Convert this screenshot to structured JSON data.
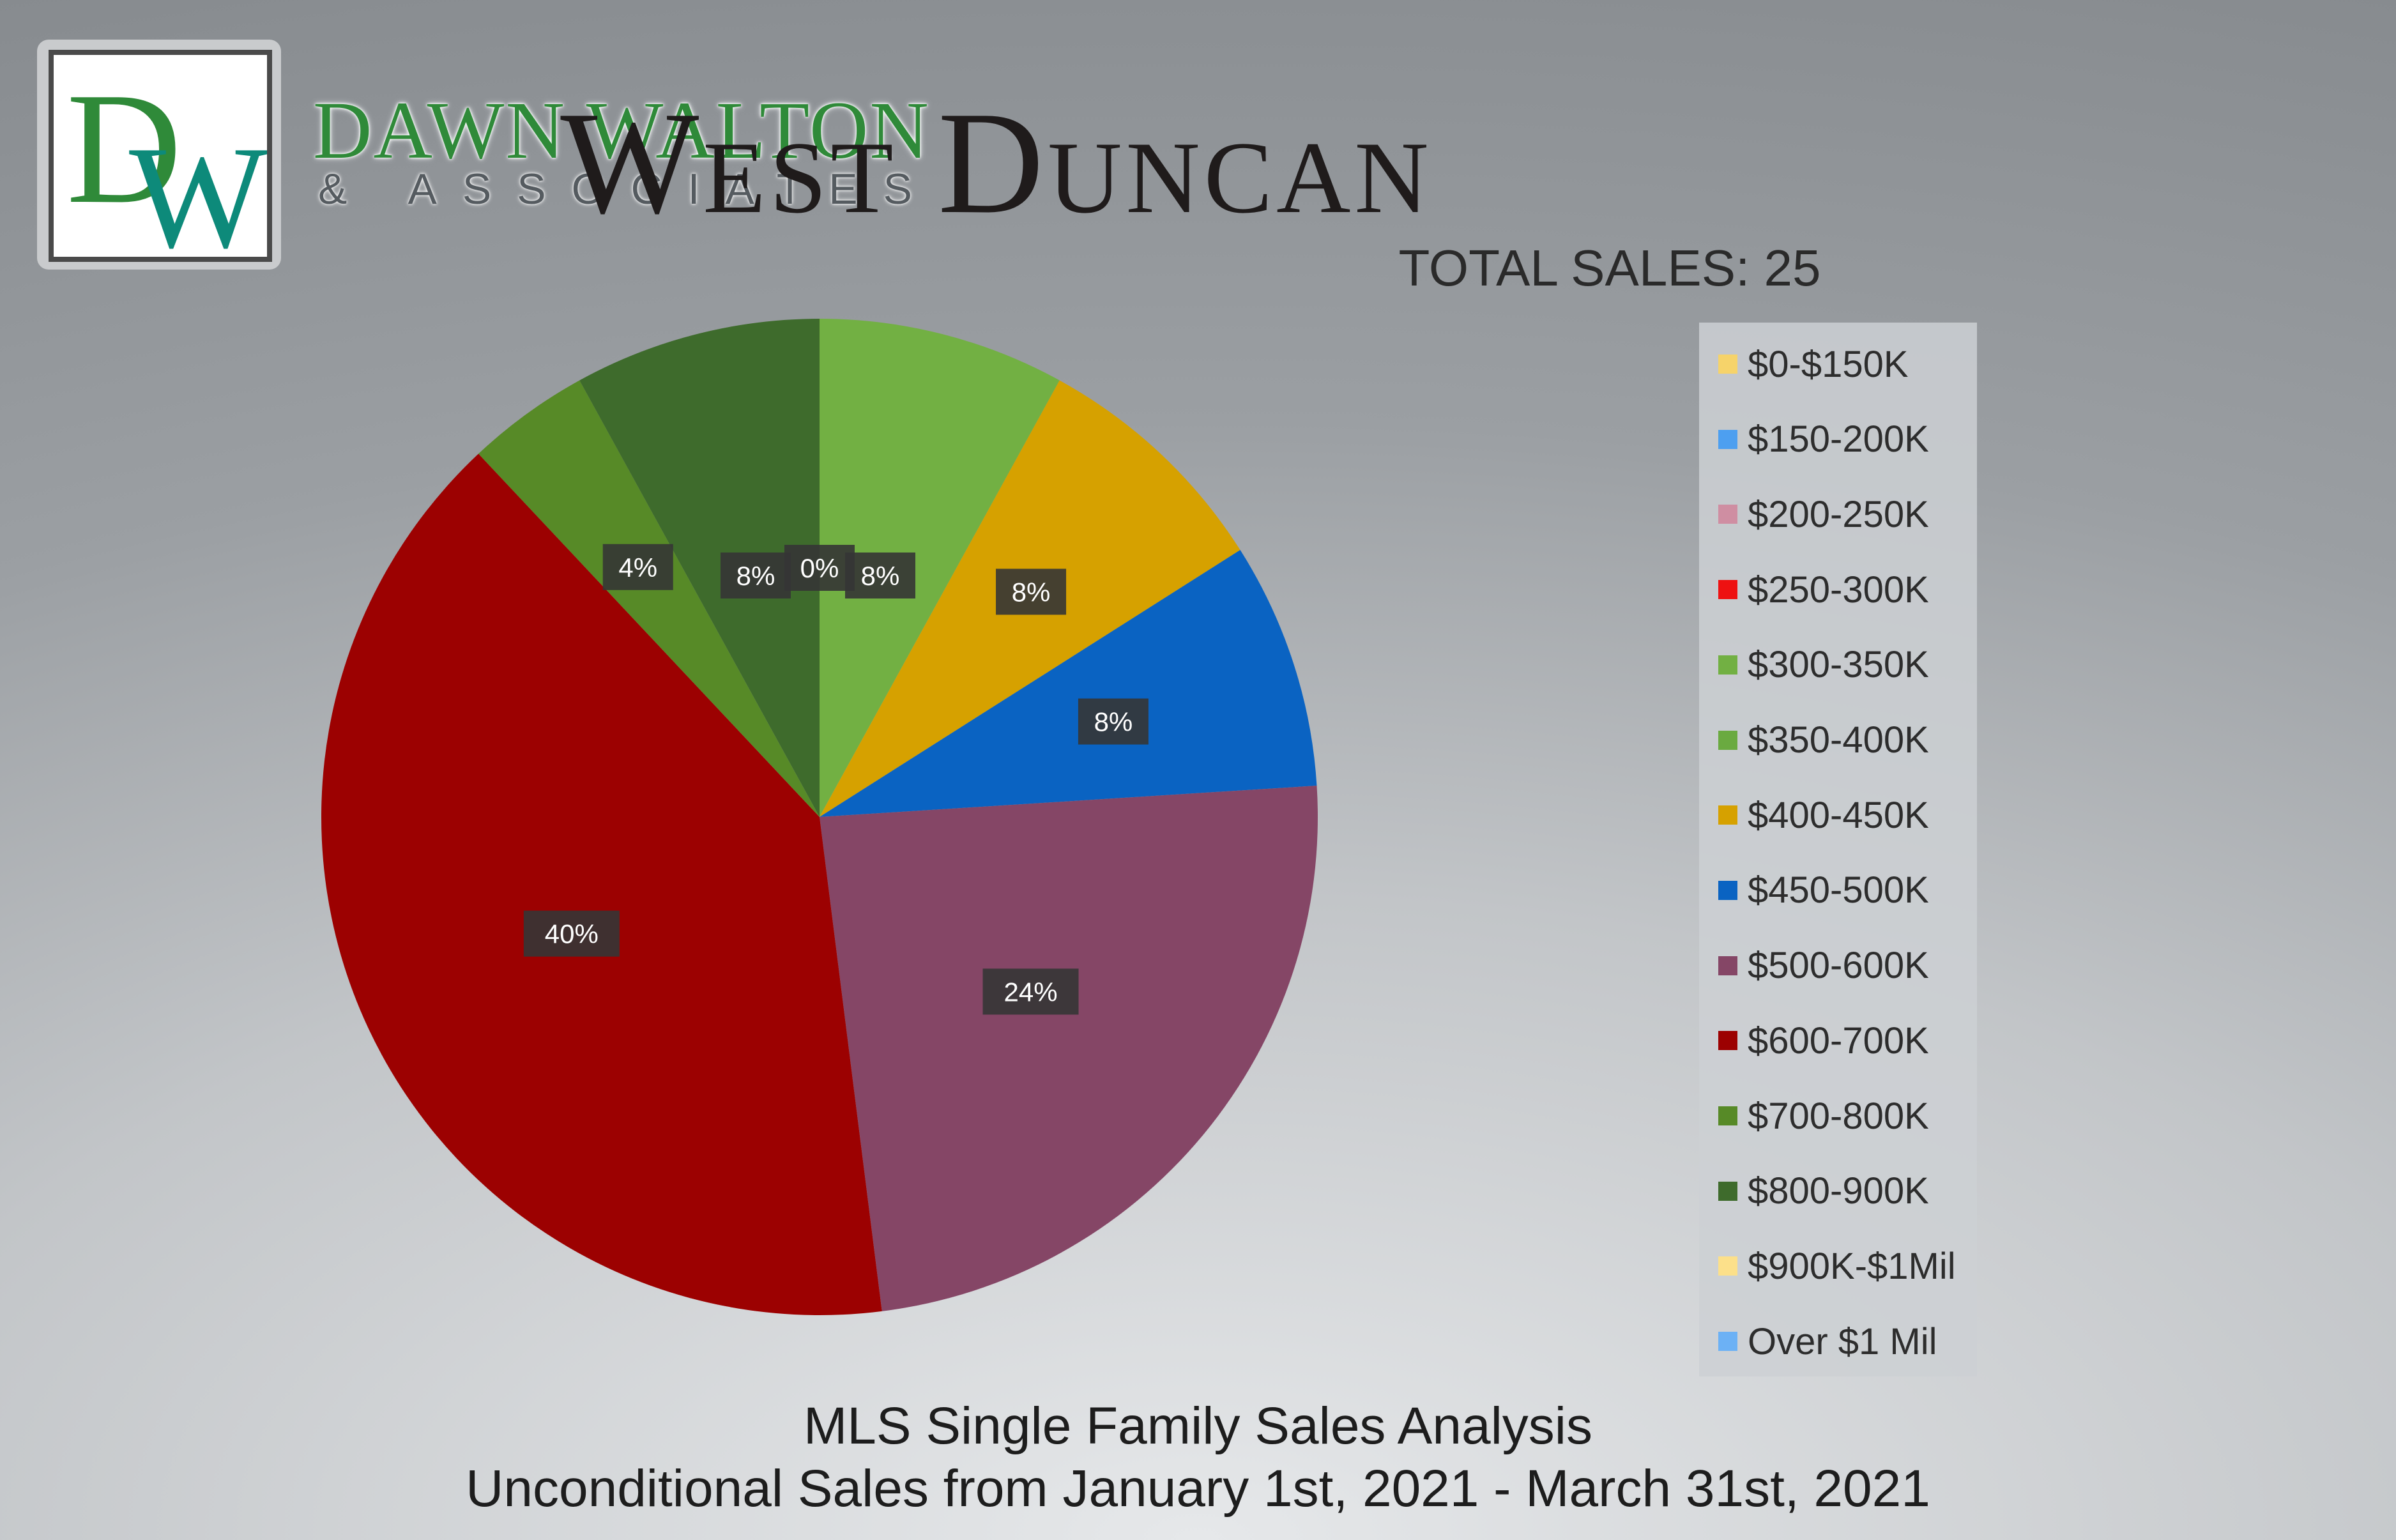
{
  "logo": {
    "monogram": "DW",
    "brand_line_1": "DAWN WALTON",
    "brand_line_2": "& ASSOCIATES"
  },
  "title": "West Duncan",
  "total_sales": "TOTAL SALES: 25",
  "footer": {
    "line1": "MLS Single Family Sales Analysis",
    "line2": "Unconditional Sales from January 1st, 2021 - March 31st, 2021"
  },
  "colors": {
    "brand_green": "#2f8a39",
    "brand_teal": "#0d8a7a"
  },
  "chart_data": {
    "type": "pie",
    "title": "",
    "legend_position": "right",
    "slices": [
      {
        "label": "$0-$150K",
        "value": 0,
        "percent_label": "",
        "color": "#f6d36a"
      },
      {
        "label": "$150-200K",
        "value": 0,
        "percent_label": "",
        "color": "#4d9ff0"
      },
      {
        "label": "$200-250K",
        "value": 0,
        "percent_label": "",
        "color": "#cf8ea2"
      },
      {
        "label": "$250-300K",
        "value": 0,
        "percent_label": "0%",
        "color": "#ee1111"
      },
      {
        "label": "$300-350K",
        "value": 8,
        "percent_label": "8%",
        "color": "#72b043"
      },
      {
        "label": "$350-400K",
        "value": 0,
        "percent_label": "",
        "color": "#6aaa40"
      },
      {
        "label": "$400-450K",
        "value": 8,
        "percent_label": "8%",
        "color": "#d6a100"
      },
      {
        "label": "$450-500K",
        "value": 8,
        "percent_label": "8%",
        "color": "#0a63c2"
      },
      {
        "label": "$500-600K",
        "value": 24,
        "percent_label": "24%",
        "color": "#854666"
      },
      {
        "label": "$600-700K",
        "value": 40,
        "percent_label": "40%",
        "color": "#9c0101"
      },
      {
        "label": "$700-800K",
        "value": 4,
        "percent_label": "4%",
        "color": "#578a27"
      },
      {
        "label": "$800-900K",
        "value": 8,
        "percent_label": "8%",
        "color": "#3e6b2c"
      },
      {
        "label": "$900K-$1Mil",
        "value": 0,
        "percent_label": "",
        "color": "#fce08a"
      },
      {
        "label": "Over $1 Mil",
        "value": 0,
        "percent_label": "",
        "color": "#6cb1f5"
      }
    ]
  }
}
